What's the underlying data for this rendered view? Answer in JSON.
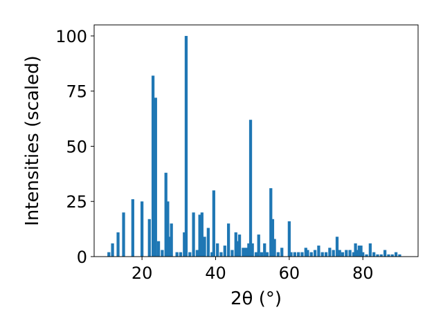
{
  "chart_data": {
    "type": "bar",
    "xlabel": "2θ (°)",
    "ylabel": "Intensities (scaled)",
    "xlim": [
      7,
      95
    ],
    "ylim": [
      0,
      105
    ],
    "xticks": [
      20,
      40,
      60,
      80
    ],
    "yticks": [
      0,
      25,
      50,
      75,
      100
    ],
    "grid": false,
    "bar_color": "#1f77b4",
    "bar_width": 0.8,
    "x": [
      11.0,
      12.0,
      13.5,
      15.0,
      17.5,
      20.0,
      22.0,
      23.0,
      23.7,
      24.5,
      25.5,
      26.5,
      27.0,
      27.5,
      28.0,
      29.5,
      30.5,
      31.5,
      32.0,
      33.0,
      34.0,
      35.0,
      35.7,
      36.3,
      37.0,
      38.0,
      39.0,
      39.5,
      40.5,
      41.5,
      42.5,
      43.5,
      44.5,
      45.5,
      46.0,
      46.5,
      47.5,
      48.3,
      49.0,
      49.5,
      50.0,
      51.0,
      51.7,
      52.5,
      53.3,
      54.0,
      55.0,
      55.5,
      56.0,
      57.0,
      58.0,
      60.0,
      60.5,
      61.5,
      62.5,
      63.5,
      64.5,
      65.0,
      66.0,
      67.0,
      68.0,
      69.0,
      70.0,
      71.0,
      72.0,
      73.0,
      73.7,
      74.5,
      75.5,
      76.5,
      77.5,
      78.0,
      78.5,
      79.0,
      79.5,
      80.0,
      81.0,
      82.0,
      83.0,
      84.0,
      85.0,
      86.0,
      87.0,
      88.0,
      89.0,
      90.0
    ],
    "values": [
      2,
      6,
      11,
      20,
      26,
      25,
      17,
      82,
      72,
      7,
      3,
      38,
      25,
      9,
      15,
      2,
      2,
      11,
      100,
      2,
      20,
      3,
      19,
      20,
      9,
      13,
      2,
      30,
      6,
      2,
      5,
      15,
      3,
      11,
      7,
      10,
      4,
      4,
      6,
      62,
      6,
      2,
      10,
      2,
      6,
      2,
      31,
      17,
      8,
      2,
      4,
      16,
      2,
      2,
      2,
      2,
      4,
      3,
      2,
      3,
      5,
      2,
      2,
      4,
      3,
      9,
      3,
      2,
      3,
      3,
      2,
      6,
      3,
      5,
      5,
      2,
      1,
      6,
      2,
      1,
      1,
      3,
      1,
      1,
      2,
      1
    ]
  }
}
